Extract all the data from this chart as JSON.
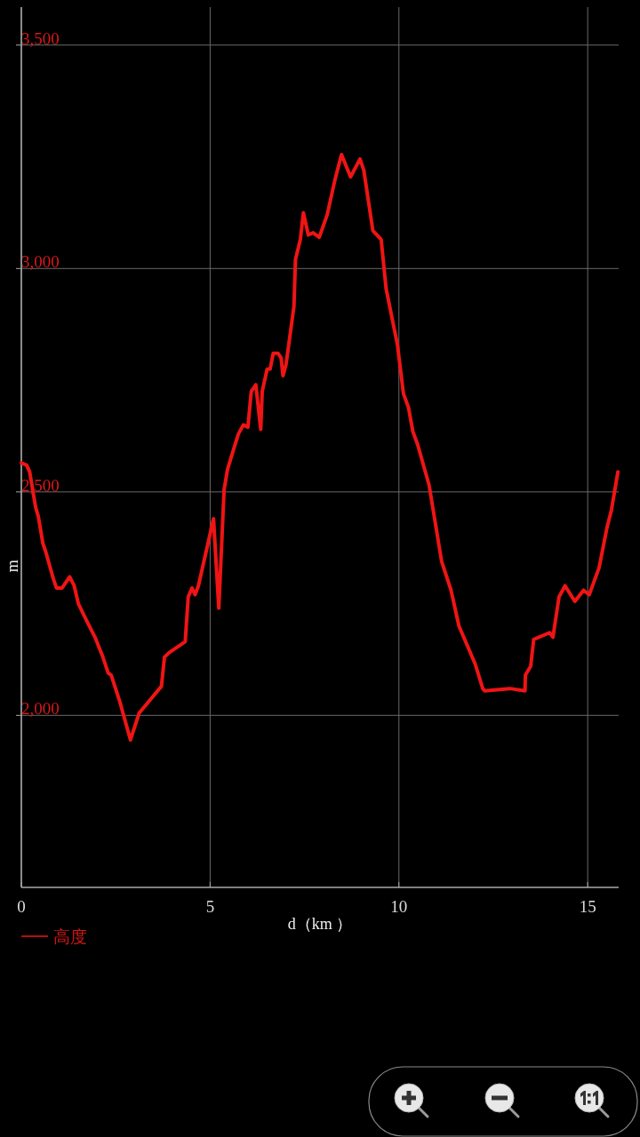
{
  "chart_data": {
    "type": "line",
    "xlabel": "d（km ）",
    "ylabel": "m",
    "xlim": [
      0,
      15.82
    ],
    "ylim": [
      1615,
      3585
    ],
    "xticks": [
      0,
      5,
      10,
      15
    ],
    "yticks": [
      {
        "value": 2000,
        "label": "2,000"
      },
      {
        "value": 2500,
        "label": "2,500"
      },
      {
        "value": 3000,
        "label": "3,000"
      },
      {
        "value": 3500,
        "label": "3,500"
      }
    ],
    "grid": true,
    "legend": "bottom left",
    "x": [
      0.0,
      0.14,
      0.22,
      0.3,
      0.38,
      0.45,
      0.57,
      0.65,
      0.85,
      0.93,
      1.08,
      1.28,
      1.4,
      1.51,
      1.71,
      1.95,
      2.14,
      2.3,
      2.38,
      2.61,
      2.89,
      3.12,
      3.71,
      3.79,
      3.91,
      4.34,
      4.42,
      4.52,
      4.6,
      4.69,
      5.09,
      5.23,
      5.37,
      5.46,
      5.62,
      5.75,
      5.88,
      6.0,
      6.09,
      6.21,
      6.34,
      6.38,
      6.51,
      6.59,
      6.67,
      6.8,
      6.88,
      6.93,
      7.01,
      7.22,
      7.26,
      7.39,
      7.47,
      7.6,
      7.73,
      7.89,
      8.1,
      8.31,
      8.48,
      8.72,
      8.97,
      9.07,
      9.31,
      9.53,
      9.66,
      9.96,
      10.12,
      10.25,
      10.37,
      10.5,
      10.8,
      11.13,
      11.38,
      11.59,
      12.02,
      12.22,
      12.27,
      12.94,
      13.34,
      13.35,
      13.49,
      13.57,
      13.99,
      14.08,
      14.24,
      14.4,
      14.66,
      14.89,
      15.04,
      15.3,
      15.51,
      15.63,
      15.8
    ],
    "series": [
      {
        "name": "高度",
        "color": "#f01414",
        "values": [
          2565,
          2560,
          2545,
          2505,
          2465,
          2445,
          2385,
          2365,
          2305,
          2285,
          2285,
          2310,
          2290,
          2250,
          2215,
          2175,
          2135,
          2095,
          2090,
          2030,
          1945,
          2005,
          2065,
          2130,
          2140,
          2165,
          2265,
          2285,
          2270,
          2290,
          2440,
          2240,
          2505,
          2550,
          2595,
          2630,
          2650,
          2645,
          2725,
          2740,
          2640,
          2725,
          2775,
          2775,
          2810,
          2810,
          2800,
          2760,
          2785,
          2915,
          3020,
          3065,
          3125,
          3075,
          3080,
          3070,
          3120,
          3200,
          3255,
          3205,
          3245,
          3220,
          3085,
          3065,
          2955,
          2830,
          2720,
          2690,
          2635,
          2605,
          2515,
          2345,
          2280,
          2200,
          2115,
          2060,
          2055,
          2060,
          2055,
          2090,
          2110,
          2170,
          2185,
          2175,
          2265,
          2290,
          2255,
          2280,
          2270,
          2330,
          2420,
          2460,
          2545
        ]
      }
    ]
  }
}
